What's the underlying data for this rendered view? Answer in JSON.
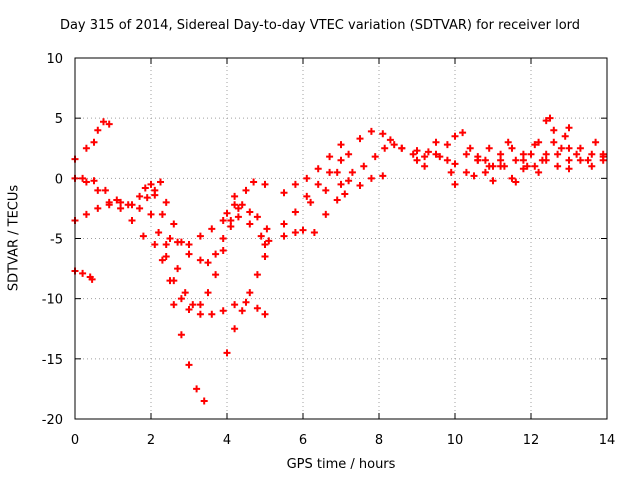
{
  "chart_data": {
    "type": "scatter",
    "title": "Day 315 of 2014, Sidereal Day-to-day VTEC variation (SDTVAR) for receiver lord",
    "xlabel": "GPS time / hours",
    "ylabel": "SDTVAR / TECUs",
    "xlim": [
      0,
      14
    ],
    "ylim": [
      -20,
      10
    ],
    "xticks": [
      "0",
      "2",
      "4",
      "6",
      "8",
      "10",
      "12",
      "14"
    ],
    "yticks": [
      "-20",
      "-15",
      "-10",
      "-5",
      "0",
      "5",
      "10"
    ],
    "grid": true,
    "legend": "none",
    "marker": "+",
    "series": [
      {
        "color": "#ff0000",
        "points": [
          [
            0.0,
            1.6
          ],
          [
            0.3,
            2.5
          ],
          [
            0.5,
            3.0
          ],
          [
            0.6,
            4.0
          ],
          [
            0.75,
            4.7
          ],
          [
            0.9,
            4.5
          ],
          [
            0.0,
            0.0
          ],
          [
            0.3,
            -0.3
          ],
          [
            0.6,
            -1.0
          ],
          [
            0.9,
            -2.0
          ],
          [
            1.2,
            -2.5
          ],
          [
            1.5,
            -3.5
          ],
          [
            1.8,
            -4.8
          ],
          [
            2.1,
            -5.5
          ],
          [
            2.3,
            -6.8
          ],
          [
            2.5,
            -8.5
          ],
          [
            2.6,
            -10.5
          ],
          [
            2.8,
            -13.0
          ],
          [
            3.0,
            -15.5
          ],
          [
            3.2,
            -17.5
          ],
          [
            3.4,
            -18.5
          ],
          [
            0.0,
            -3.5
          ],
          [
            0.3,
            -3.0
          ],
          [
            0.6,
            -2.5
          ],
          [
            0.9,
            -2.2
          ],
          [
            1.2,
            -2.0
          ],
          [
            1.5,
            -2.2
          ],
          [
            1.7,
            -1.5
          ],
          [
            1.85,
            -0.8
          ],
          [
            2.0,
            -0.5
          ],
          [
            2.1,
            -1.0
          ],
          [
            2.3,
            -3.0
          ],
          [
            2.5,
            -5.0
          ],
          [
            2.7,
            -7.5
          ],
          [
            2.9,
            -9.5
          ],
          [
            3.1,
            -10.5
          ],
          [
            3.3,
            -10.5
          ],
          [
            3.5,
            -9.5
          ],
          [
            3.7,
            -8.0
          ],
          [
            3.9,
            -6.0
          ],
          [
            4.1,
            -4.0
          ],
          [
            4.3,
            -2.5
          ],
          [
            4.5,
            -1.0
          ],
          [
            4.7,
            -0.3
          ],
          [
            5.0,
            -0.5
          ],
          [
            0.0,
            -7.7
          ],
          [
            0.2,
            -7.9
          ],
          [
            0.4,
            -8.2
          ],
          [
            0.45,
            -8.4
          ],
          [
            0.2,
            0.0
          ],
          [
            0.5,
            -0.2
          ],
          [
            0.8,
            -1.0
          ],
          [
            1.1,
            -1.8
          ],
          [
            1.4,
            -2.2
          ],
          [
            1.7,
            -2.5
          ],
          [
            2.0,
            -3.0
          ],
          [
            2.2,
            -4.5
          ],
          [
            2.4,
            -6.5
          ],
          [
            2.6,
            -8.5
          ],
          [
            2.8,
            -10.0
          ],
          [
            3.0,
            -10.9
          ],
          [
            3.3,
            -11.3
          ],
          [
            3.6,
            -11.3
          ],
          [
            3.9,
            -11.0
          ],
          [
            4.2,
            -10.5
          ],
          [
            4.5,
            -10.3
          ],
          [
            4.8,
            -10.8
          ],
          [
            5.0,
            -11.3
          ],
          [
            1.9,
            -1.6
          ],
          [
            2.1,
            -1.4
          ],
          [
            2.25,
            -0.3
          ],
          [
            2.4,
            -2.0
          ],
          [
            2.6,
            -3.8
          ],
          [
            2.8,
            -5.3
          ],
          [
            3.0,
            -6.3
          ],
          [
            3.3,
            -6.8
          ],
          [
            3.5,
            -7.0
          ],
          [
            3.7,
            -6.3
          ],
          [
            3.9,
            -5.0
          ],
          [
            4.1,
            -3.5
          ],
          [
            4.3,
            -3.2
          ],
          [
            4.6,
            -3.8
          ],
          [
            4.9,
            -4.8
          ],
          [
            5.0,
            -5.5
          ],
          [
            2.4,
            -5.5
          ],
          [
            2.7,
            -5.3
          ],
          [
            3.0,
            -5.5
          ],
          [
            3.3,
            -4.8
          ],
          [
            3.6,
            -4.2
          ],
          [
            3.9,
            -3.5
          ],
          [
            4.0,
            -2.9
          ],
          [
            4.2,
            -2.2
          ],
          [
            4.2,
            -1.5
          ],
          [
            4.4,
            -2.2
          ],
          [
            4.6,
            -2.8
          ],
          [
            4.8,
            -3.2
          ],
          [
            5.05,
            -4.2
          ],
          [
            4.0,
            -14.5
          ],
          [
            4.2,
            -12.5
          ],
          [
            4.4,
            -11.0
          ],
          [
            4.6,
            -9.5
          ],
          [
            4.8,
            -8.0
          ],
          [
            5.0,
            -6.5
          ],
          [
            5.1,
            -5.2
          ],
          [
            5.5,
            -1.2
          ],
          [
            5.8,
            -0.5
          ],
          [
            6.1,
            0.0
          ],
          [
            6.4,
            0.8
          ],
          [
            6.7,
            1.8
          ],
          [
            7.0,
            2.8
          ],
          [
            5.5,
            -3.8
          ],
          [
            5.8,
            -2.8
          ],
          [
            6.1,
            -1.5
          ],
          [
            6.4,
            -0.5
          ],
          [
            6.7,
            0.5
          ],
          [
            7.0,
            1.5
          ],
          [
            5.5,
            -4.8
          ],
          [
            5.8,
            -4.5
          ],
          [
            6.0,
            -4.3
          ],
          [
            6.3,
            -4.5
          ],
          [
            6.6,
            -3.0
          ],
          [
            6.9,
            -1.8
          ],
          [
            7.1,
            -1.3
          ],
          [
            6.2,
            -2.0
          ],
          [
            6.6,
            -1.0
          ],
          [
            6.9,
            0.5
          ],
          [
            7.2,
            2.0
          ],
          [
            7.5,
            3.3
          ],
          [
            7.8,
            3.9
          ],
          [
            8.1,
            3.7
          ],
          [
            7.0,
            -0.5
          ],
          [
            7.3,
            0.5
          ],
          [
            7.6,
            1.0
          ],
          [
            7.9,
            1.8
          ],
          [
            8.15,
            2.5
          ],
          [
            7.2,
            -0.2
          ],
          [
            7.5,
            -0.6
          ],
          [
            7.8,
            0.0
          ],
          [
            8.1,
            0.2
          ],
          [
            8.4,
            2.8
          ],
          [
            8.6,
            2.5
          ],
          [
            8.9,
            2.0
          ],
          [
            9.0,
            1.5
          ],
          [
            8.3,
            3.2
          ],
          [
            8.6,
            2.5
          ],
          [
            9.0,
            2.3
          ],
          [
            9.2,
            1.8
          ],
          [
            9.5,
            3.0
          ],
          [
            9.8,
            2.8
          ],
          [
            10.0,
            3.5
          ],
          [
            10.2,
            3.8
          ],
          [
            10.4,
            2.5
          ],
          [
            10.6,
            1.5
          ],
          [
            10.8,
            0.5
          ],
          [
            11.0,
            1.0
          ],
          [
            11.2,
            2.0
          ],
          [
            11.4,
            3.0
          ],
          [
            11.6,
            1.5
          ],
          [
            11.8,
            0.8
          ],
          [
            12.0,
            2.0
          ],
          [
            12.2,
            3.0
          ],
          [
            12.4,
            4.8
          ],
          [
            12.5,
            5.0
          ],
          [
            12.6,
            4.0
          ],
          [
            12.8,
            2.5
          ],
          [
            13.0,
            1.5
          ],
          [
            9.2,
            1.0
          ],
          [
            9.5,
            2.0
          ],
          [
            9.8,
            1.5
          ],
          [
            10.0,
            1.2
          ],
          [
            10.3,
            2.0
          ],
          [
            10.6,
            1.5
          ],
          [
            10.9,
            1.0
          ],
          [
            11.2,
            1.5
          ],
          [
            11.5,
            2.5
          ],
          [
            11.8,
            2.0
          ],
          [
            12.1,
            1.0
          ],
          [
            12.4,
            1.5
          ],
          [
            12.7,
            2.0
          ],
          [
            13.0,
            2.5
          ],
          [
            13.3,
            1.5
          ],
          [
            13.6,
            1.0
          ],
          [
            13.9,
            1.8
          ],
          [
            9.3,
            2.2
          ],
          [
            9.6,
            1.8
          ],
          [
            9.9,
            0.5
          ],
          [
            10.0,
            -0.5
          ],
          [
            10.3,
            0.5
          ],
          [
            10.6,
            1.8
          ],
          [
            10.9,
            2.5
          ],
          [
            11.2,
            1.0
          ],
          [
            11.5,
            0.0
          ],
          [
            11.8,
            1.5
          ],
          [
            12.1,
            2.8
          ],
          [
            12.4,
            2.0
          ],
          [
            12.7,
            1.0
          ],
          [
            13.0,
            0.8
          ],
          [
            13.3,
            2.5
          ],
          [
            13.6,
            2.0
          ],
          [
            13.9,
            1.5
          ],
          [
            10.5,
            0.2
          ],
          [
            10.8,
            1.5
          ],
          [
            11.0,
            -0.2
          ],
          [
            11.3,
            1.0
          ],
          [
            11.6,
            -0.3
          ],
          [
            11.9,
            1.0
          ],
          [
            12.2,
            0.5
          ],
          [
            12.3,
            1.5
          ],
          [
            12.6,
            3.0
          ],
          [
            12.9,
            3.5
          ],
          [
            13.0,
            4.2
          ],
          [
            13.2,
            2.0
          ],
          [
            13.5,
            1.5
          ],
          [
            13.7,
            3.0
          ],
          [
            13.9,
            2.0
          ]
        ]
      }
    ]
  }
}
